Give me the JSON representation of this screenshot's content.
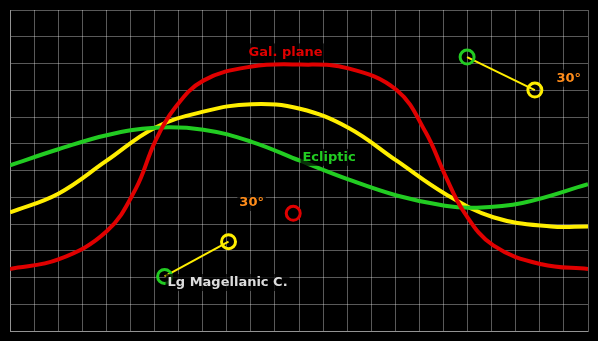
{
  "chart_data": {
    "type": "line",
    "xlim": [
      0,
      360
    ],
    "ylim": [
      -90,
      90
    ],
    "xticks": [
      0,
      15,
      30,
      45,
      60,
      75,
      90,
      105,
      120,
      135,
      150,
      165,
      180,
      195,
      210,
      225,
      240,
      255,
      270,
      285,
      300,
      315,
      330,
      345,
      360
    ],
    "yticks": [
      -90,
      -75,
      -60,
      -45,
      -30,
      -15,
      0,
      15,
      30,
      45,
      60,
      75,
      90
    ],
    "grid": true,
    "tick_labels": false,
    "series": [
      {
        "type": "line",
        "color": "#e00000",
        "x": [
          0,
          30.1,
          60.2,
          78.3,
          90.3,
          102.3,
          120.4,
          150.5,
          180.6,
          210.7,
          240.8,
          258.9,
          270.9,
          282.9,
          301,
          331.1,
          360
        ],
        "values": [
          -55.2,
          -49.9,
          -34.1,
          -10.3,
          16.1,
          34.6,
          50.4,
          58.3,
          59.4,
          57.3,
          45.1,
          21.4,
          -2.4,
          -23.5,
          -42,
          -52.6,
          -55.2
        ]
      },
      {
        "type": "line",
        "color": "#22cc22",
        "x": [
          0,
          30.1,
          60.2,
          90.3,
          120.4,
          150.5,
          180.6,
          210.7,
          240.8,
          270.9,
          289,
          319.1,
          360
        ],
        "values": [
          2.9,
          11.9,
          19.8,
          24,
          22.9,
          16.1,
          5.5,
          -5,
          -14,
          -19.8,
          -20.9,
          -18.2,
          -7.7
        ]
      },
      {
        "type": "line",
        "color": "#ffee00",
        "x": [
          0,
          30.1,
          60.2,
          90.3,
          120.4,
          150.5,
          180.6,
          210.7,
          240.8,
          270.9,
          301,
          337.1,
          360
        ],
        "values": [
          -23.5,
          -13,
          5.5,
          24,
          33,
          37.2,
          34.6,
          24,
          5.5,
          -13,
          -26.2,
          -31.4,
          -31.4
        ]
      },
      {
        "type": "line",
        "color": "#ffee00",
        "colors": [
          "#22cc22",
          "#ffee00"
        ],
        "marker": "circle",
        "x": [
          96.3,
          136.1
        ],
        "values": [
          -59.4,
          -39.9
        ]
      },
      {
        "type": "line",
        "color": "#ffee00",
        "colors": [
          "#22cc22",
          "#ffee00"
        ],
        "marker": "circle",
        "x": [
          284.7,
          326.9
        ],
        "values": [
          63.6,
          45.1
        ]
      },
      {
        "type": "scatter",
        "color": "#e00000",
        "marker": "circle",
        "x": [
          176.4
        ],
        "values": [
          -24
        ]
      }
    ],
    "annotations": [
      {
        "text": "Gal. plane",
        "x": 171.6,
        "y": 66.2,
        "color": "#e00000"
      },
      {
        "text": "Ecliptic",
        "x": 198.7,
        "y": 7.1,
        "color": "#22cc22"
      },
      {
        "text": "30°",
        "x": 150.5,
        "y": -18.2,
        "color": "#ff8c1a"
      },
      {
        "text": "30°",
        "x": 348,
        "y": 51.5,
        "color": "#ff8c1a"
      },
      {
        "text": "Lg Magellanic C.",
        "x": 135.5,
        "y": -63.1,
        "color": "#dddddd"
      }
    ]
  }
}
